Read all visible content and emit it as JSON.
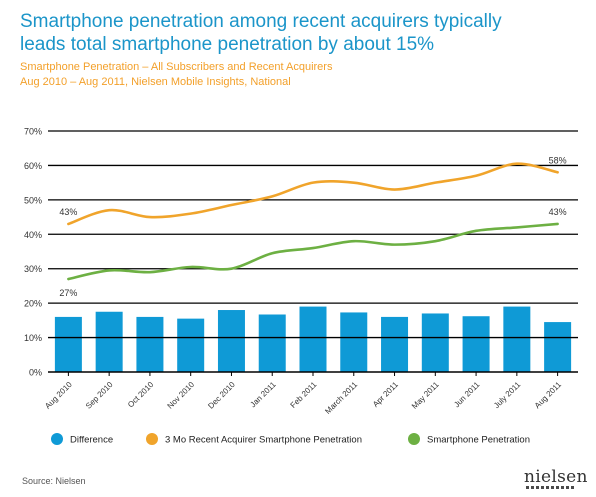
{
  "title_line1": "Smartphone penetration among recent acquirers typically",
  "title_line2": "leads total smartphone penetration by about 15%",
  "subtitle_line1": "Smartphone Penetration – All Subscribers and Recent Acquirers",
  "subtitle_line2": "Aug 2010 – Aug 2011, Nielsen Mobile Insights, National",
  "source": "Source: Nielsen",
  "logo": "nielsen",
  "colors": {
    "difference": "#0f9ad6",
    "acquirer": "#f0a42b",
    "smartphone": "#6db043",
    "title": "#1b95c9"
  },
  "chart_data": {
    "type": "bar",
    "categories": [
      "Aug 2010",
      "Sep 2010",
      "Oct 2010",
      "Nov 2010",
      "Dec 2010",
      "Jan 2011",
      "Feb 2011",
      "March 2011",
      "Apr 2011",
      "May 2011",
      "Jun 2011",
      "July 2011",
      "Aug 2011"
    ],
    "ylim": [
      0,
      70
    ],
    "yticks": [
      "0%",
      "10%",
      "20%",
      "30%",
      "40%",
      "50%",
      "60%",
      "70%"
    ],
    "grid": true,
    "legend_position": "bottom",
    "series": [
      {
        "name": "Difference",
        "type": "bar",
        "values": [
          16,
          17.5,
          16,
          15.5,
          18,
          16.7,
          19,
          17.3,
          16,
          17,
          16.2,
          19,
          14.5
        ]
      },
      {
        "name": "3 Mo Recent Acquirer Smartphone Penetration",
        "type": "line",
        "values": [
          43,
          47,
          45,
          46,
          48.5,
          51,
          55,
          55,
          53,
          55,
          57,
          60.5,
          58
        ]
      },
      {
        "name": "Smartphone Penetration",
        "type": "line",
        "values": [
          27,
          29.5,
          29,
          30.5,
          30,
          34.5,
          36,
          38,
          37,
          38,
          41,
          42,
          43
        ]
      }
    ],
    "annotations": [
      {
        "series": 1,
        "index": 0,
        "text": "43%"
      },
      {
        "series": 1,
        "index": 12,
        "text": "58%"
      },
      {
        "series": 2,
        "index": 0,
        "text": "27%"
      },
      {
        "series": 2,
        "index": 12,
        "text": "43%"
      }
    ]
  }
}
